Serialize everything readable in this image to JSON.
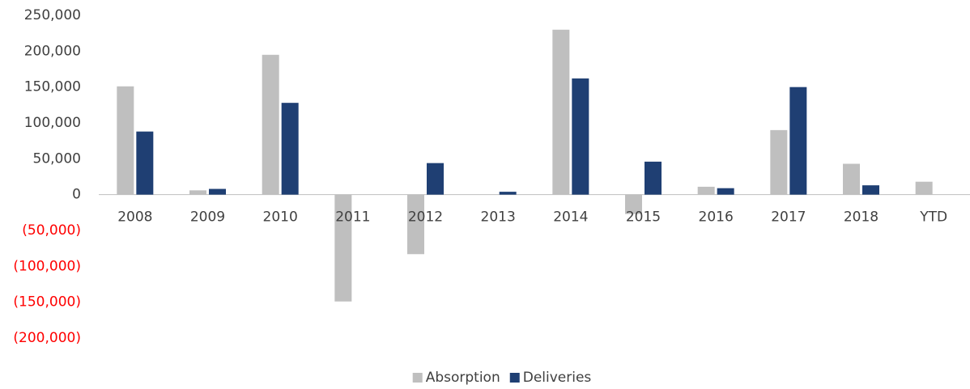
{
  "chart_data": {
    "type": "bar",
    "categories": [
      "2008",
      "2009",
      "2010",
      "2011",
      "2012",
      "2013",
      "2014",
      "2015",
      "2016",
      "2017",
      "2018",
      "YTD"
    ],
    "series": [
      {
        "name": "Absorption",
        "color": "#bfbfbf",
        "values": [
          151000,
          6000,
          195000,
          -149000,
          -83000,
          0,
          230000,
          -27000,
          11000,
          90000,
          43000,
          18000
        ]
      },
      {
        "name": "Deliveries",
        "color": "#1f3f73",
        "values": [
          88000,
          8000,
          128000,
          0,
          44000,
          4000,
          162000,
          46000,
          9000,
          150000,
          13000,
          0
        ]
      }
    ],
    "ylim": [
      -200000,
      250000
    ],
    "yticks": [
      {
        "value": -200000,
        "label": "(200,000)"
      },
      {
        "value": -150000,
        "label": "(150,000)"
      },
      {
        "value": -100000,
        "label": "(100,000)"
      },
      {
        "value": -50000,
        "label": "(50,000)"
      },
      {
        "value": 0,
        "label": "0"
      },
      {
        "value": 50000,
        "label": "50,000"
      },
      {
        "value": 100000,
        "label": "100,000"
      },
      {
        "value": 150000,
        "label": "150,000"
      },
      {
        "value": 200000,
        "label": "200,000"
      },
      {
        "value": 250000,
        "label": "250,000"
      }
    ],
    "negative_tick_color": "#ff0000",
    "grid": false,
    "legend": "bottom"
  }
}
